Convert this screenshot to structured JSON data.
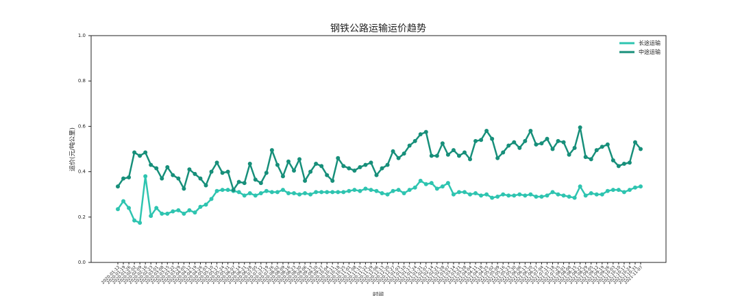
{
  "chart_data": {
    "type": "line",
    "title": "钢铁公路运输运价趋势",
    "xlabel": "时间",
    "ylabel": "运价(元/吨公里)",
    "categories": [
      "2020-01-12",
      "2020-01-19",
      "2020-01-26",
      "2020-02-02",
      "2020-02-09",
      "2020-02-16",
      "2020-02-23",
      "2020-03-01",
      "2020-03-08",
      "2020-03-15",
      "2020-03-22",
      "2020-03-29",
      "2020-04-05",
      "2020-04-12",
      "2020-04-19",
      "2020-04-26",
      "2020-05-03",
      "2020-05-10",
      "2020-05-17",
      "2020-05-24",
      "2020-05-31",
      "2020-06-07",
      "2020-06-14",
      "2020-06-21",
      "2020-06-28",
      "2020-07-05",
      "2020-07-12",
      "2020-07-19",
      "2020-07-26",
      "2020-08-02",
      "2020-08-09",
      "2020-08-16",
      "2020-08-23",
      "2020-08-30",
      "2020-09-06",
      "2020-09-13",
      "2020-09-20",
      "2020-09-27",
      "2020-10-04",
      "2020-10-11",
      "2020-10-18",
      "2020-10-25",
      "2020-11-01",
      "2020-11-08",
      "2020-11-15",
      "2020-11-22",
      "2020-11-29",
      "2020-12-06",
      "2020-12-13",
      "2020-12-20",
      "2020-12-27",
      "2021-01-03",
      "2021-01-10",
      "2021-01-17",
      "2021-01-24",
      "2021-01-31",
      "2021-02-07",
      "2021-02-14",
      "2021-02-21",
      "2021-02-28",
      "2021-03-07",
      "2021-03-14",
      "2021-03-21",
      "2021-03-28",
      "2021-04-04",
      "2021-04-11",
      "2021-04-18",
      "2021-04-25",
      "2021-05-02",
      "2021-05-09",
      "2021-05-16",
      "2021-05-23",
      "2021-05-30",
      "2021-06-06",
      "2021-06-13",
      "2021-06-20",
      "2021-06-27",
      "2021-07-04",
      "2021-07-11",
      "2021-07-18",
      "2021-07-25",
      "2021-08-01",
      "2021-08-08",
      "2021-08-15",
      "2021-08-22",
      "2021-08-29",
      "2021-09-05",
      "2021-09-12",
      "2021-09-19",
      "2021-09-26",
      "2021-10-03",
      "2021-10-10",
      "2021-10-17",
      "2021-10-24",
      "2021-10-31",
      "2021-11-07"
    ],
    "series": [
      {
        "name": "长途运输",
        "color": "#2ec4b0",
        "values": [
          0.235,
          0.27,
          0.24,
          0.185,
          0.175,
          0.38,
          0.205,
          0.24,
          0.215,
          0.215,
          0.225,
          0.23,
          0.215,
          0.23,
          0.22,
          0.245,
          0.255,
          0.28,
          0.315,
          0.32,
          0.32,
          0.315,
          0.31,
          0.295,
          0.305,
          0.295,
          0.305,
          0.315,
          0.31,
          0.31,
          0.32,
          0.305,
          0.305,
          0.3,
          0.305,
          0.3,
          0.31,
          0.31,
          0.31,
          0.31,
          0.31,
          0.31,
          0.315,
          0.32,
          0.315,
          0.325,
          0.32,
          0.315,
          0.305,
          0.3,
          0.315,
          0.32,
          0.305,
          0.32,
          0.33,
          0.36,
          0.345,
          0.35,
          0.325,
          0.335,
          0.35,
          0.3,
          0.31,
          0.31,
          0.3,
          0.305,
          0.295,
          0.3,
          0.285,
          0.29,
          0.3,
          0.295,
          0.295,
          0.3,
          0.295,
          0.3,
          0.29,
          0.29,
          0.295,
          0.31,
          0.3,
          0.295,
          0.29,
          0.285,
          0.335,
          0.295,
          0.305,
          0.3,
          0.3,
          0.315,
          0.32,
          0.32,
          0.31,
          0.32,
          0.33,
          0.335
        ]
      },
      {
        "name": "中途运输",
        "color": "#178f7a",
        "values": [
          0.335,
          0.37,
          0.375,
          0.485,
          0.47,
          0.485,
          0.43,
          0.415,
          0.37,
          0.42,
          0.385,
          0.37,
          0.325,
          0.41,
          0.39,
          0.37,
          0.34,
          0.4,
          0.44,
          0.395,
          0.4,
          0.32,
          0.355,
          0.35,
          0.435,
          0.365,
          0.35,
          0.395,
          0.495,
          0.43,
          0.38,
          0.445,
          0.405,
          0.455,
          0.36,
          0.4,
          0.435,
          0.425,
          0.385,
          0.36,
          0.46,
          0.425,
          0.415,
          0.405,
          0.42,
          0.43,
          0.44,
          0.385,
          0.415,
          0.43,
          0.49,
          0.46,
          0.48,
          0.515,
          0.535,
          0.565,
          0.575,
          0.47,
          0.47,
          0.525,
          0.475,
          0.495,
          0.47,
          0.485,
          0.455,
          0.535,
          0.54,
          0.58,
          0.545,
          0.46,
          0.485,
          0.515,
          0.53,
          0.505,
          0.535,
          0.58,
          0.52,
          0.525,
          0.545,
          0.5,
          0.535,
          0.53,
          0.475,
          0.505,
          0.595,
          0.465,
          0.455,
          0.495,
          0.51,
          0.52,
          0.45,
          0.425,
          0.435,
          0.44,
          0.53,
          0.5
        ]
      }
    ],
    "ylim": [
      0,
      1
    ],
    "yticks": [
      {
        "value": 0,
        "label": "0.0"
      },
      0.2,
      0.4,
      0.6,
      0.8,
      {
        "value": 1,
        "label": "1.0"
      }
    ],
    "grid": false,
    "legend": "upper right"
  }
}
